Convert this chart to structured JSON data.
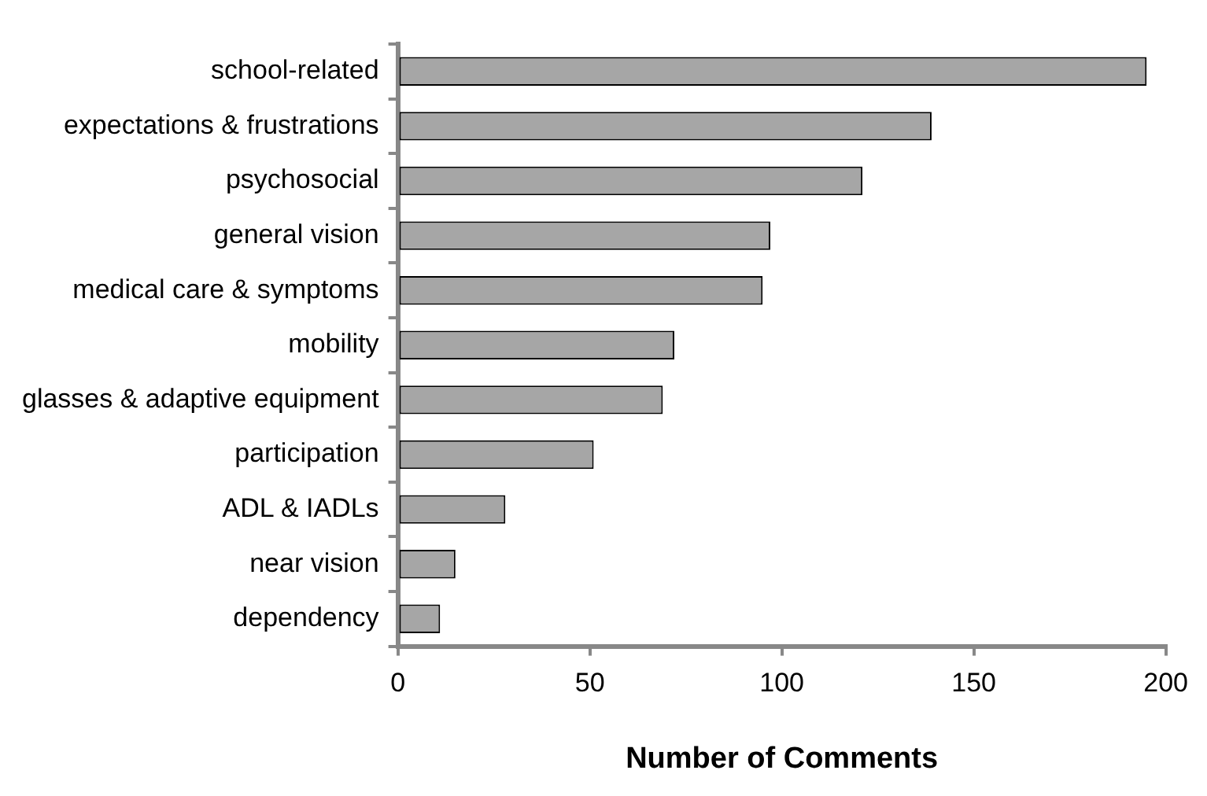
{
  "chart_data": {
    "type": "bar",
    "orientation": "horizontal",
    "xlabel": "Number of Comments",
    "categories": [
      "school-related",
      "expectations & frustrations",
      "psychosocial",
      "general vision",
      "medical care & symptoms",
      "mobility",
      "glasses & adaptive equipment",
      "participation",
      "ADL & IADLs",
      "near vision",
      "dependency"
    ],
    "values": [
      195,
      139,
      121,
      97,
      95,
      72,
      69,
      51,
      28,
      15,
      11
    ],
    "color": "#a6a6a6",
    "xlim": [
      0,
      200
    ],
    "xticks": [
      0,
      50,
      100,
      150,
      200
    ],
    "grid": false,
    "legend": false
  }
}
